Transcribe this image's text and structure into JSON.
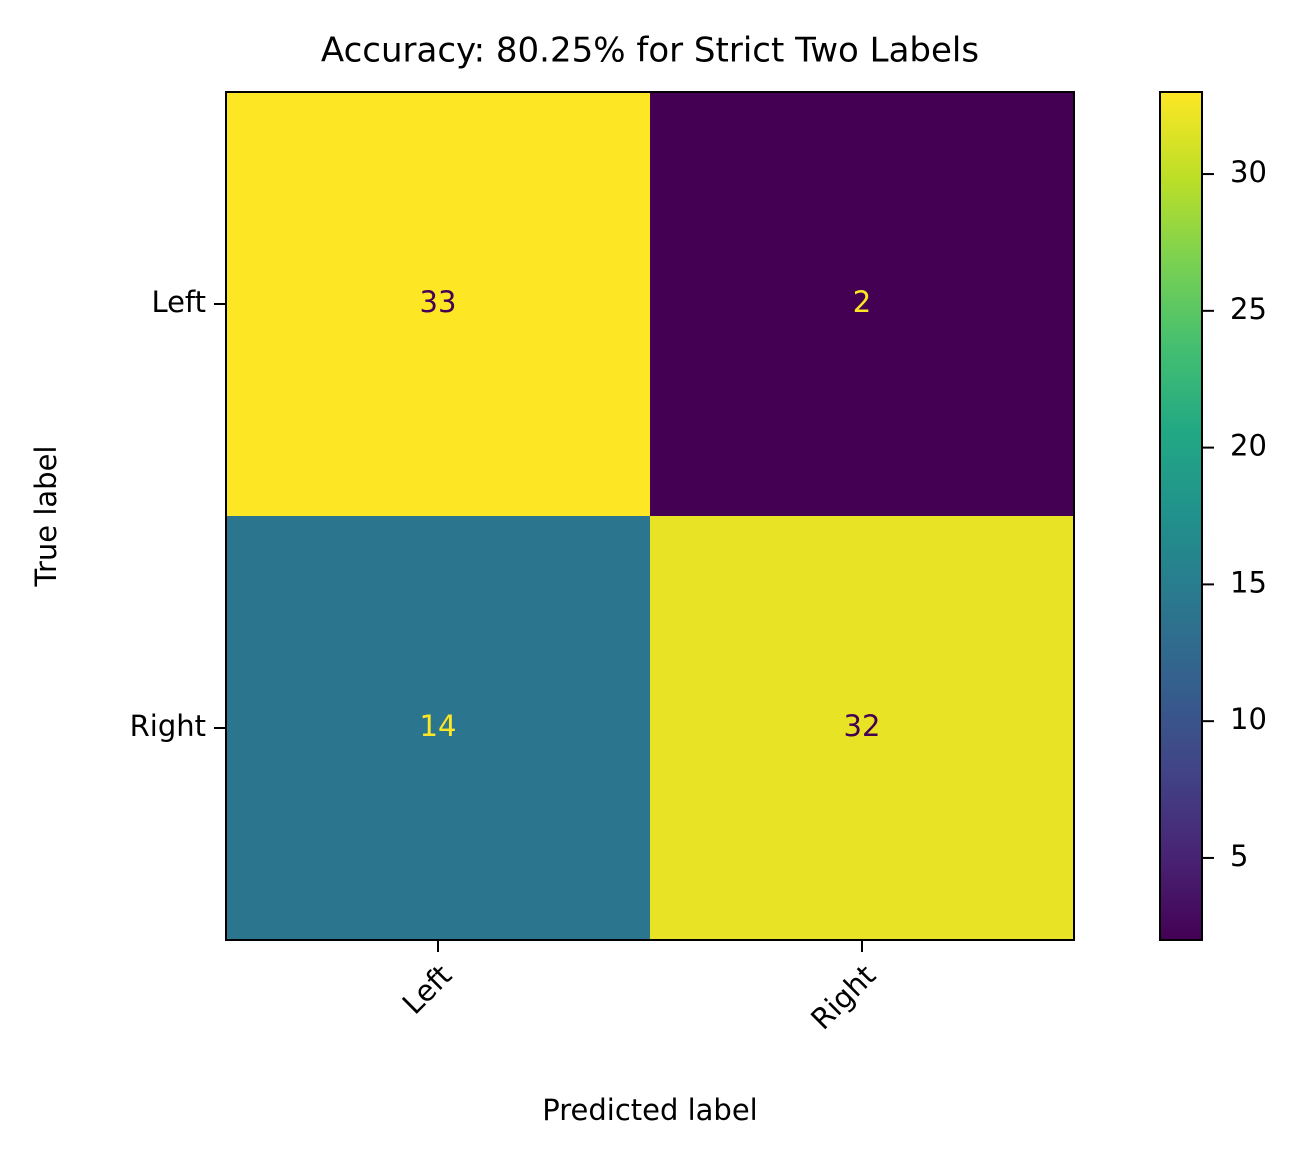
{
  "chart_data": {
    "type": "heatmap",
    "title": "Accuracy: 80.25% for Strict Two Labels",
    "x_label": "Predicted label",
    "y_label": "True label",
    "x_categories": [
      "Left",
      "Right"
    ],
    "y_categories": [
      "Left",
      "Right"
    ],
    "values": [
      [
        33,
        2
      ],
      [
        14,
        32
      ]
    ],
    "colormap": "viridis",
    "clim": [
      2,
      33
    ],
    "cticks": [
      5,
      10,
      15,
      20,
      25,
      30
    ]
  }
}
